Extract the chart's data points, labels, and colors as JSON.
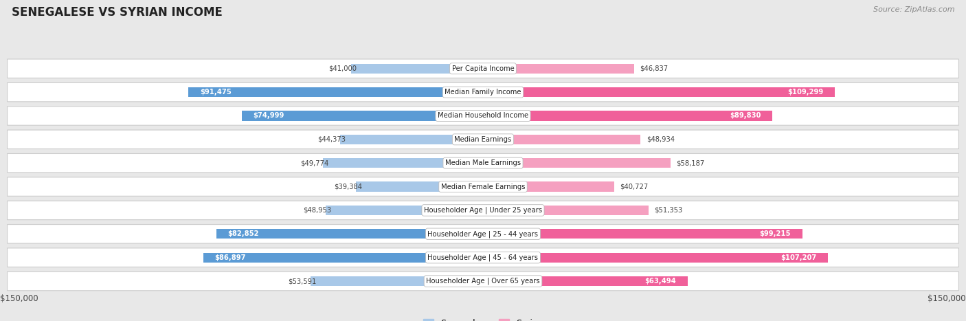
{
  "title": "SENEGALESE VS SYRIAN INCOME",
  "source": "Source: ZipAtlas.com",
  "categories": [
    "Per Capita Income",
    "Median Family Income",
    "Median Household Income",
    "Median Earnings",
    "Median Male Earnings",
    "Median Female Earnings",
    "Householder Age | Under 25 years",
    "Householder Age | 25 - 44 years",
    "Householder Age | 45 - 64 years",
    "Householder Age | Over 65 years"
  ],
  "senegalese": [
    41000,
    91475,
    74999,
    44373,
    49774,
    39384,
    48953,
    82852,
    86897,
    53591
  ],
  "syrian": [
    46837,
    109299,
    89830,
    48934,
    58187,
    40727,
    51353,
    99215,
    107207,
    63494
  ],
  "senegalese_labels": [
    "$41,000",
    "$91,475",
    "$74,999",
    "$44,373",
    "$49,774",
    "$39,384",
    "$48,953",
    "$82,852",
    "$86,897",
    "$53,591"
  ],
  "syrian_labels": [
    "$46,837",
    "$109,299",
    "$89,830",
    "$48,934",
    "$58,187",
    "$40,727",
    "$51,353",
    "$99,215",
    "$107,207",
    "$63,494"
  ],
  "senegalese_color_light": "#a8c8e8",
  "senegalese_color_dark": "#5b9bd5",
  "syrian_color_light": "#f5a0c0",
  "syrian_color_dark": "#f0609a",
  "bg_color": "#e8e8e8",
  "row_bg": "#ffffff",
  "max_val": 150000,
  "legend_senegalese": "Senegalese",
  "legend_syrian": "Syrian",
  "xlabel_left": "$150,000",
  "xlabel_right": "$150,000",
  "large_thresh": 60000
}
